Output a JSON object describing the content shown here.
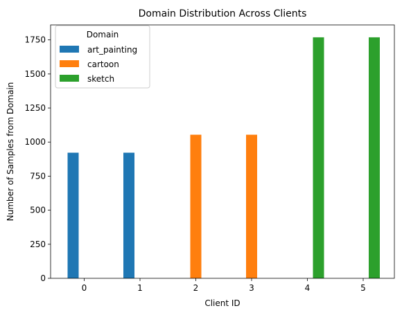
{
  "chart_data": {
    "type": "bar",
    "title": "Domain Distribution Across Clients",
    "xlabel": "Client ID",
    "ylabel": "Number of Samples from Domain",
    "categories": [
      "0",
      "1",
      "2",
      "3",
      "4",
      "5"
    ],
    "yticks": [
      0,
      250,
      500,
      750,
      1000,
      1250,
      1500,
      1750
    ],
    "ylim": [
      0,
      1860
    ],
    "legend": {
      "title": "Domain",
      "placement": "top-left"
    },
    "series": [
      {
        "name": "art_painting",
        "color": "#1f77b4",
        "values": [
          922,
          922,
          0,
          0,
          0,
          0
        ]
      },
      {
        "name": "cartoon",
        "color": "#ff7f0e",
        "values": [
          0,
          0,
          1054,
          1054,
          0,
          0
        ]
      },
      {
        "name": "sketch",
        "color": "#2ca02c",
        "values": [
          0,
          0,
          0,
          0,
          1769,
          1769
        ]
      }
    ]
  }
}
